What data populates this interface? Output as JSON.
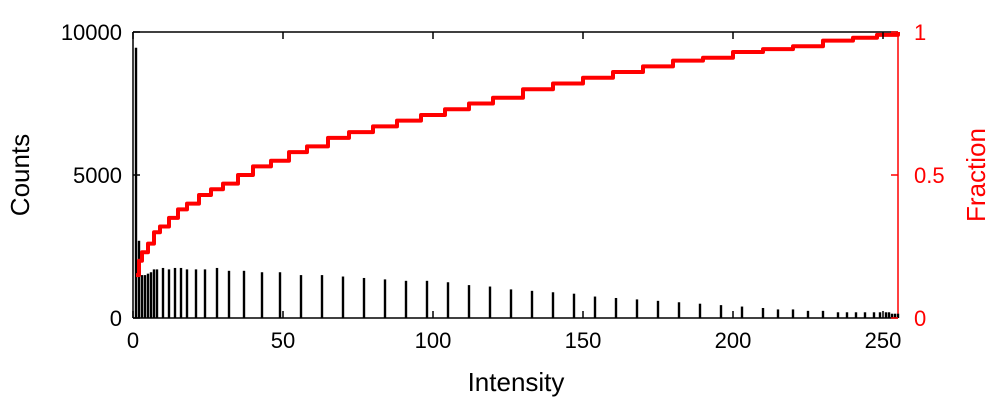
{
  "chart_data": {
    "type": "bar",
    "xlabel": "Intensity",
    "ylabel": "Counts",
    "y2label": "Fraction",
    "xlim": [
      0,
      255
    ],
    "ylim": [
      0,
      10000
    ],
    "y2lim": [
      0,
      1
    ],
    "xticks": [
      "0",
      "50",
      "100",
      "150",
      "200",
      "250"
    ],
    "yticks": [
      "0",
      "5000",
      "10000"
    ],
    "y2ticks": [
      "0",
      "0.5",
      "1"
    ],
    "grid": false,
    "colors": {
      "bars": "#000000",
      "fraction": "#ff0000",
      "left_axis": "#000000",
      "right_axis": "#ff0000"
    },
    "series": [
      {
        "axis": "left",
        "type": "bar",
        "x": [
          1,
          2,
          3,
          4,
          5,
          6,
          7,
          8,
          10,
          12,
          14,
          16,
          18,
          21,
          24,
          28,
          32,
          37,
          43,
          49,
          56,
          63,
          70,
          77,
          84,
          91,
          98,
          105,
          112,
          119,
          126,
          133,
          140,
          147,
          154,
          161,
          168,
          175,
          182,
          189,
          196,
          203,
          210,
          215,
          220,
          225,
          230,
          235,
          238,
          241,
          244,
          247,
          249,
          251,
          252,
          253,
          254,
          255
        ],
        "values": [
          9450,
          2700,
          1500,
          1500,
          1550,
          1600,
          1700,
          1700,
          1750,
          1700,
          1750,
          1750,
          1700,
          1700,
          1700,
          1750,
          1650,
          1650,
          1600,
          1600,
          1500,
          1500,
          1450,
          1400,
          1350,
          1300,
          1300,
          1250,
          1150,
          1100,
          1000,
          950,
          900,
          850,
          750,
          700,
          650,
          600,
          550,
          500,
          450,
          400,
          350,
          300,
          300,
          250,
          250,
          200,
          200,
          200,
          200,
          200,
          200,
          200,
          200,
          150,
          150,
          150
        ]
      },
      {
        "axis": "right",
        "type": "line",
        "x": [
          1,
          2,
          3,
          5,
          7,
          9,
          12,
          15,
          18,
          22,
          26,
          30,
          35,
          40,
          46,
          52,
          58,
          65,
          72,
          80,
          88,
          96,
          104,
          112,
          120,
          130,
          140,
          150,
          160,
          170,
          180,
          190,
          200,
          210,
          220,
          230,
          240,
          248,
          255
        ],
        "values": [
          0.15,
          0.2,
          0.23,
          0.26,
          0.3,
          0.32,
          0.35,
          0.38,
          0.4,
          0.43,
          0.45,
          0.47,
          0.5,
          0.53,
          0.55,
          0.58,
          0.6,
          0.63,
          0.65,
          0.67,
          0.69,
          0.71,
          0.73,
          0.75,
          0.77,
          0.8,
          0.82,
          0.84,
          0.86,
          0.88,
          0.9,
          0.91,
          0.93,
          0.94,
          0.95,
          0.97,
          0.98,
          0.99,
          1.0
        ]
      }
    ]
  }
}
